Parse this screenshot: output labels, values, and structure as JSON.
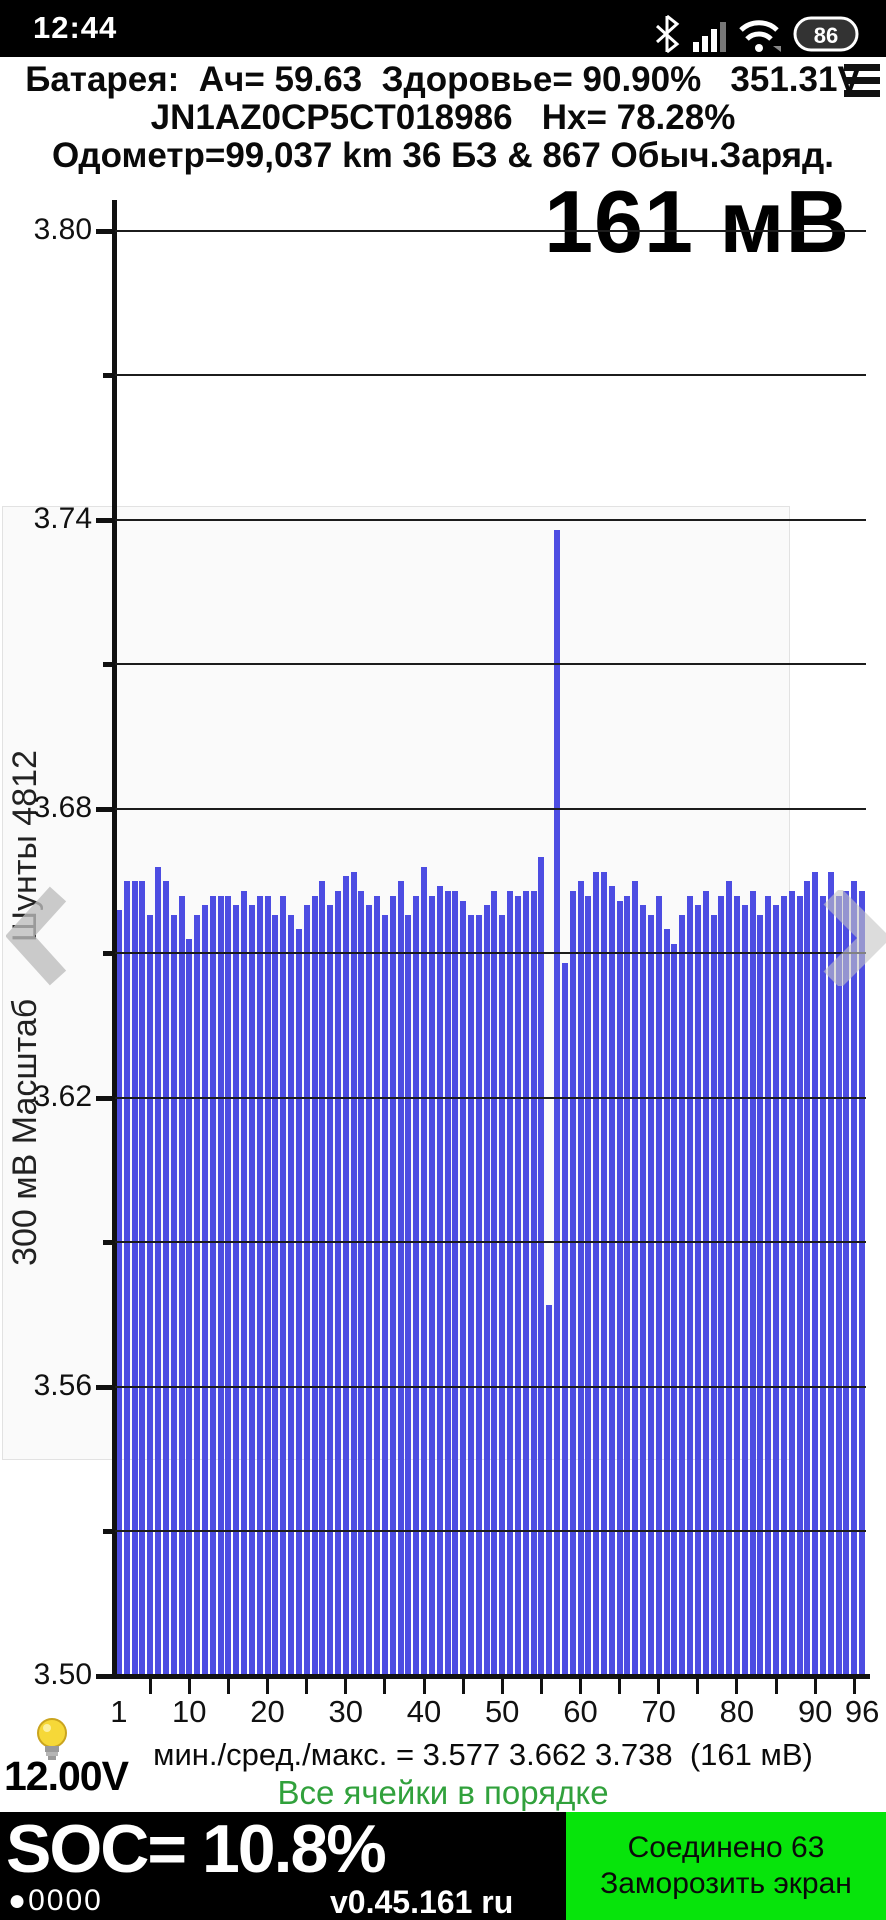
{
  "status_bar": {
    "time": "12:44",
    "battery_percent": "86",
    "icons": [
      "bluetooth-icon",
      "signal-icon",
      "wifi-icon",
      "battery-icon"
    ]
  },
  "header": {
    "line1": "Батарея:  Ач= 59.63  Здоровье= 90.90%   351.31V",
    "line2": "JN1AZ0CP5CT018986   Hx= 78.28%",
    "line3": "Одометр=99,037 km 36 БЗ & 867 Обыч.Заряд.",
    "menu_icon": "hamburger-menu-icon"
  },
  "chart_data": {
    "type": "bar",
    "title_overlay": "161 мВ",
    "ylabel": "300 мВ Масштаб      Шунты 4812",
    "ylim": [
      3.5,
      3.8
    ],
    "ytick_step": 0.03,
    "ytick_labeled": [
      3.8,
      3.74,
      3.68,
      3.62,
      3.56,
      3.5
    ],
    "xticks": [
      1,
      10,
      20,
      30,
      40,
      50,
      60,
      70,
      80,
      90,
      96
    ],
    "xminor_step": 5,
    "grid": true,
    "bar_color": "#4d4de2",
    "num_cells": 96,
    "values": [
      3.659,
      3.665,
      3.665,
      3.665,
      3.658,
      3.668,
      3.665,
      3.658,
      3.662,
      3.653,
      3.658,
      3.66,
      3.662,
      3.662,
      3.662,
      3.66,
      3.663,
      3.66,
      3.662,
      3.662,
      3.658,
      3.662,
      3.658,
      3.655,
      3.66,
      3.662,
      3.665,
      3.66,
      3.663,
      3.666,
      3.667,
      3.663,
      3.66,
      3.662,
      3.658,
      3.662,
      3.665,
      3.658,
      3.662,
      3.668,
      3.662,
      3.664,
      3.663,
      3.663,
      3.661,
      3.658,
      3.658,
      3.66,
      3.663,
      3.658,
      3.663,
      3.662,
      3.663,
      3.663,
      3.67,
      3.577,
      3.738,
      3.648,
      3.663,
      3.665,
      3.662,
      3.667,
      3.667,
      3.664,
      3.661,
      3.662,
      3.665,
      3.66,
      3.658,
      3.662,
      3.655,
      3.652,
      3.658,
      3.662,
      3.66,
      3.663,
      3.658,
      3.662,
      3.665,
      3.662,
      3.66,
      3.663,
      3.658,
      3.662,
      3.66,
      3.662,
      3.663,
      3.662,
      3.665,
      3.667,
      3.662,
      3.667,
      3.662,
      3.663,
      3.665,
      3.663
    ],
    "min": 3.577,
    "avg": 3.662,
    "max": 3.738,
    "spread_mv": 161
  },
  "chart_footer": {
    "stats_line": "мин./сред./макс. = 3.577 3.662 3.738  (161 мВ)",
    "status_line": "Все ячейки в порядке",
    "status_color": "#31a13c",
    "aux_voltage": "12.00V"
  },
  "footer": {
    "soc_label": "SOC= 10.8%",
    "dots": "●0000",
    "version": "v0.45.161 ru",
    "button_color": "#07e40b",
    "connect_line1": "Соединено 63",
    "connect_line2": "Заморозить экран"
  }
}
